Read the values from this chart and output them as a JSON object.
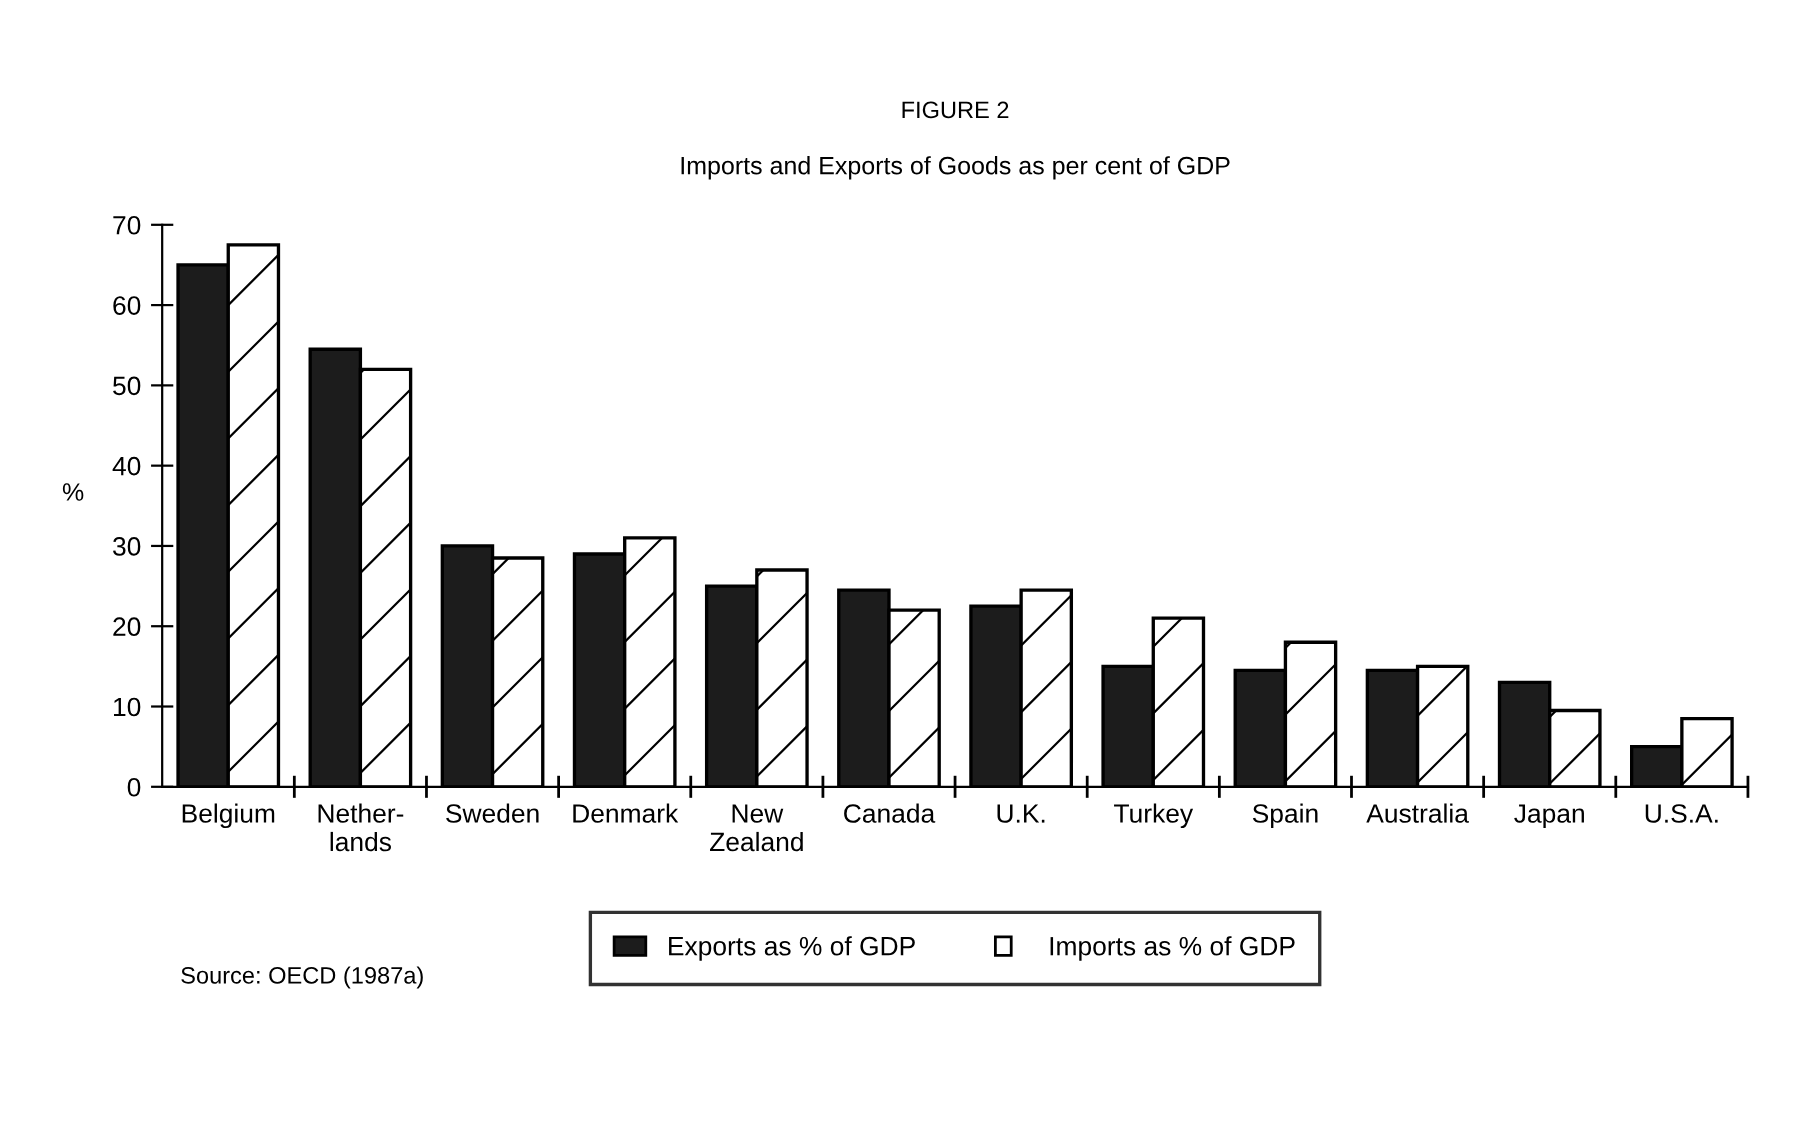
{
  "chart_data": {
    "type": "bar",
    "title": "FIGURE 2",
    "subtitle": "Imports and Exports of Goods as per cent of GDP",
    "ylabel": "%",
    "categories": [
      "Belgium",
      "Nether-\nlands",
      "Sweden",
      "Denmark",
      "New\nZealand",
      "Canada",
      "U.K.",
      "Turkey",
      "Spain",
      "Australia",
      "Japan",
      "U.S.A."
    ],
    "series": [
      {
        "name": "Exports as % of GDP",
        "color": "#1c1c1c",
        "values": [
          65,
          54.5,
          30,
          29,
          25,
          24.5,
          22.5,
          15,
          14.5,
          14.5,
          13,
          5
        ]
      },
      {
        "name": "Imports as % of GDP",
        "color": "#ffffff",
        "values": [
          67.5,
          52,
          28.5,
          31,
          27,
          22,
          24.5,
          21,
          18,
          15,
          9.5,
          8.5
        ]
      }
    ],
    "ylim": [
      0,
      70
    ],
    "yticks": [
      0,
      10,
      20,
      30,
      40,
      50,
      60,
      70
    ],
    "grid": false,
    "legend": "bottom",
    "annotations": [
      "Source: OECD (1987a)"
    ]
  }
}
